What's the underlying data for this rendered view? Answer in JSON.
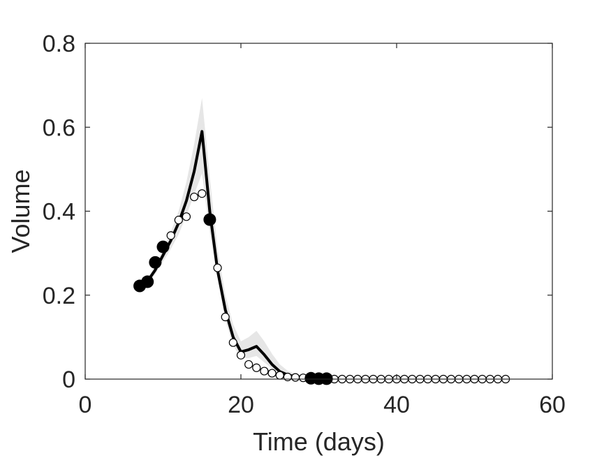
{
  "chart_data": {
    "type": "scatter",
    "title": "",
    "xlabel": "Time (days)",
    "ylabel": "Volume",
    "xlim": [
      0,
      60
    ],
    "ylim": [
      0,
      0.8
    ],
    "xticks": [
      0,
      20,
      40,
      60
    ],
    "xtick_labels": [
      "0",
      "20",
      "40",
      "60"
    ],
    "yticks": [
      0,
      0.2,
      0.4,
      0.6,
      0.8
    ],
    "ytick_labels": [
      "0",
      "0.2",
      "0.4",
      "0.6",
      "0.8"
    ],
    "grid": false,
    "legend": "none",
    "colors": {
      "observed": "#000000",
      "predicted": "#000000",
      "fit_line": "#000000",
      "band": "#e6e6e6",
      "axes": "#262626"
    },
    "series": [
      {
        "kind": "band",
        "x": [
          7,
          8,
          9,
          10,
          11,
          12,
          13,
          14,
          15,
          16,
          17,
          18,
          19,
          20,
          21,
          22,
          23,
          24,
          25,
          26,
          27,
          28,
          29,
          30,
          31,
          40,
          54
        ],
        "lower": [
          0.215,
          0.225,
          0.25,
          0.28,
          0.31,
          0.345,
          0.39,
          0.44,
          0.49,
          0.35,
          0.24,
          0.14,
          0.08,
          0.05,
          0.05,
          0.055,
          0.04,
          0.025,
          0.012,
          0.006,
          0.003,
          0.002,
          0.001,
          0.001,
          0.001,
          0,
          0
        ],
        "upper": [
          0.225,
          0.24,
          0.27,
          0.31,
          0.35,
          0.4,
          0.47,
          0.56,
          0.67,
          0.48,
          0.31,
          0.2,
          0.13,
          0.09,
          0.1,
          0.115,
          0.09,
          0.06,
          0.035,
          0.02,
          0.012,
          0.008,
          0.005,
          0.004,
          0.003,
          0.002,
          0.001
        ]
      },
      {
        "kind": "line",
        "x": [
          7,
          8,
          9,
          10,
          11,
          12,
          13,
          14,
          15,
          16,
          17,
          18,
          19,
          20,
          21,
          22,
          23,
          24,
          25,
          26,
          27,
          28,
          29,
          30,
          31,
          35,
          40,
          54
        ],
        "y": [
          0.22,
          0.233,
          0.26,
          0.295,
          0.33,
          0.372,
          0.425,
          0.495,
          0.59,
          0.4,
          0.26,
          0.165,
          0.1,
          0.065,
          0.07,
          0.078,
          0.058,
          0.035,
          0.018,
          0.01,
          0.006,
          0.004,
          0.003,
          0.002,
          0.002,
          0.001,
          0.001,
          0.001
        ]
      },
      {
        "kind": "observed",
        "x": [
          7,
          8,
          9,
          10,
          16,
          29,
          30,
          31
        ],
        "y": [
          0.222,
          0.232,
          0.278,
          0.315,
          0.38,
          0.002,
          0.001,
          0.001
        ]
      },
      {
        "kind": "predicted",
        "x": [
          11,
          12,
          13,
          14,
          15,
          17,
          18,
          19,
          20,
          21,
          22,
          23,
          24,
          25,
          26,
          27,
          28,
          32,
          33,
          34,
          35,
          36,
          37,
          38,
          39,
          40,
          41,
          42,
          43,
          44,
          45,
          46,
          47,
          48,
          49,
          50,
          51,
          52,
          53,
          54
        ],
        "y": [
          0.342,
          0.379,
          0.387,
          0.434,
          0.442,
          0.265,
          0.148,
          0.087,
          0.057,
          0.035,
          0.027,
          0.019,
          0.014,
          0.009,
          0.005,
          0.004,
          0.003,
          0,
          0,
          0,
          0,
          0,
          0,
          0,
          0,
          0,
          0,
          0,
          0,
          0,
          0,
          0,
          0,
          0,
          0,
          0,
          0,
          0,
          0,
          0
        ]
      }
    ]
  }
}
